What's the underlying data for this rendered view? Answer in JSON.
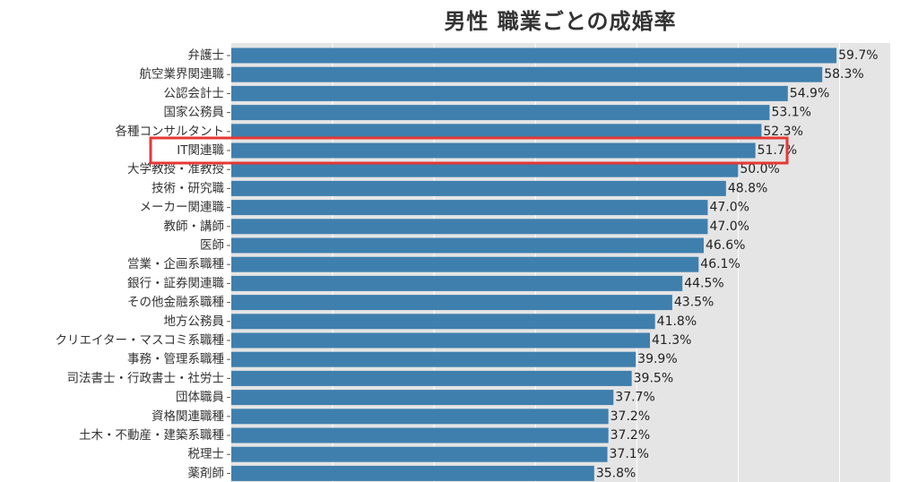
{
  "chart_data": {
    "type": "bar",
    "orientation": "horizontal",
    "title": "男性 職業ごとの成婚率",
    "categories": [
      "弁護士",
      "航空業界関連職",
      "公認会計士",
      "国家公務員",
      "各種コンサルタント",
      "IT関連職",
      "大学教授・准教授",
      "技術・研究職",
      "メーカー関連職",
      "教師・講師",
      "医師",
      "営業・企画系職種",
      "銀行・証券関連職",
      "その他金融系職種",
      "地方公務員",
      "クリエイター・マスコミ系職種",
      "事務・管理系職種",
      "司法書士・行政書士・社労士",
      "団体職員",
      "資格関連職種",
      "土木・不動産・建築系職種",
      "税理士",
      "薬剤師"
    ],
    "values": [
      59.7,
      58.3,
      54.9,
      53.1,
      52.3,
      51.7,
      50.0,
      48.8,
      47.0,
      47.0,
      46.6,
      46.1,
      44.5,
      43.5,
      41.8,
      41.3,
      39.9,
      39.5,
      37.7,
      37.2,
      37.2,
      37.1,
      35.8
    ],
    "value_labels": [
      "59.7%",
      "58.3%",
      "54.9%",
      "53.1%",
      "52.3%",
      "51.7%",
      "50.0%",
      "48.8%",
      "47.0%",
      "47.0%",
      "46.6%",
      "46.1%",
      "44.5%",
      "43.5%",
      "41.8%",
      "41.3%",
      "39.9%",
      "39.5%",
      "37.7%",
      "37.2%",
      "37.2%",
      "37.1%",
      "35.8%"
    ],
    "xlim": [
      0,
      65
    ],
    "highlighted_category": "IT関連職",
    "bar_color": "#3f7fad",
    "highlight_color": "#e53935",
    "background_color": "#e5e5e5",
    "grid": true
  }
}
